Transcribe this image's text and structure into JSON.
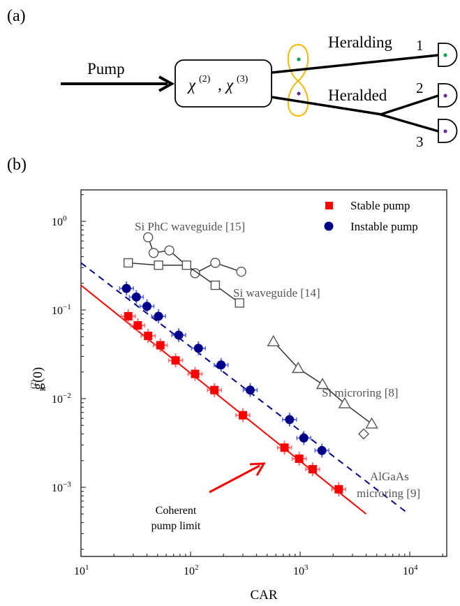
{
  "panel_a": {
    "label": "(a)",
    "pump_label": "Pump",
    "box_label_chi2": "χ",
    "box_sup2": "(2)",
    "box_sep": ", ",
    "box_label_chi3": "χ",
    "box_sup3": "(3)",
    "heralding_label": "Heralding",
    "heralded_label": "Heralded",
    "detector_1": "1",
    "detector_2": "2",
    "detector_3": "3",
    "colors": {
      "loop": "#f5b800",
      "heralding_photon": "#00a651",
      "heralded_photon": "#6a2c9a"
    }
  },
  "panel_b": {
    "label": "(b)"
  },
  "chart_data": {
    "type": "scatter",
    "title": "",
    "xlabel": "CAR",
    "ylabel": "g_h^(2)(0)",
    "xscale": "log",
    "yscale": "log",
    "xlim": [
      10,
      20000
    ],
    "ylim": [
      0.0005,
      2
    ],
    "x_ticks": [
      "10^1",
      "10^2",
      "10^3",
      "10^4"
    ],
    "y_ticks": [
      "10^0",
      "10^-1",
      "10^-2",
      "10^-3"
    ],
    "legend": {
      "position": "upper right",
      "entries": [
        {
          "label": "Stable pump",
          "marker": "square",
          "color": "#ff0000"
        },
        {
          "label": "Instable pump",
          "marker": "circle",
          "color": "#00008b"
        }
      ]
    },
    "series": [
      {
        "name": "Stable pump",
        "marker": "square",
        "color": "#ff0000",
        "x": [
          27,
          33,
          41,
          53,
          73,
          110,
          165,
          300,
          720,
          980,
          1300,
          2250
        ],
        "y": [
          0.085,
          0.067,
          0.051,
          0.04,
          0.027,
          0.019,
          0.0125,
          0.0065,
          0.0028,
          0.0021,
          0.0016,
          0.00095
        ]
      },
      {
        "name": "Instable pump",
        "marker": "circle",
        "color": "#00008b",
        "x": [
          26,
          32,
          40,
          51,
          78,
          118,
          190,
          350,
          800,
          1080,
          1580
        ],
        "y": [
          0.175,
          0.14,
          0.11,
          0.085,
          0.052,
          0.037,
          0.024,
          0.0125,
          0.0058,
          0.0036,
          0.0026
        ]
      },
      {
        "name": "Coherent pump limit",
        "type": "line",
        "style": "solid",
        "color": "#ff0000",
        "x": [
          10,
          4000
        ],
        "y": [
          0.19,
          0.0005
        ]
      },
      {
        "name": "Instable pump fit",
        "type": "line",
        "style": "dashed",
        "color": "#00008b",
        "x": [
          10,
          9800
        ],
        "y": [
          0.34,
          0.0005
        ]
      },
      {
        "name": "Si PhC waveguide [15]",
        "marker": "open-circle",
        "color": "#555555",
        "x": [
          41,
          46,
          64,
          110,
          168,
          290
        ],
        "y": [
          0.66,
          0.44,
          0.47,
          0.26,
          0.34,
          0.27
        ]
      },
      {
        "name": "Si waveguide [14]",
        "marker": "open-square",
        "color": "#555555",
        "x": [
          27,
          51,
          92,
          168,
          280
        ],
        "y": [
          0.34,
          0.32,
          0.32,
          0.19,
          0.12
        ]
      },
      {
        "name": "Si microring [8]",
        "marker": "open-triangle",
        "color": "#555555",
        "x": [
          570,
          960,
          1600,
          2550,
          4500
        ],
        "y": [
          0.044,
          0.022,
          0.0145,
          0.0088,
          0.0052
        ]
      },
      {
        "name": "AlGaAs microring [9]",
        "marker": "open-diamond",
        "color": "#555555",
        "x": [
          3800
        ],
        "y": [
          0.004
        ]
      }
    ],
    "annotations": [
      {
        "text": "Si PhC waveguide [15]",
        "near": [
          40,
          0.9
        ]
      },
      {
        "text": "Si waveguide [14]",
        "near": [
          200,
          0.17
        ]
      },
      {
        "text": "Si microring [8]",
        "near": [
          1500,
          0.018
        ]
      },
      {
        "text": "AlGaAs",
        "near": [
          4000,
          0.0034
        ]
      },
      {
        "text": "microring [9]",
        "near": [
          4000,
          0.0021
        ]
      },
      {
        "text": "Coherent",
        "near": [
          40,
          0.0021
        ]
      },
      {
        "text": "pump limit",
        "near": [
          40,
          0.0013
        ]
      }
    ]
  },
  "text": {
    "phc_label": "Si PhC waveguide [15]",
    "siwg_label": "Si waveguide [14]",
    "microring_label": "Si microring [8]",
    "algaas_label_1": "AlGaAs",
    "algaas_label_2": "microring [9]",
    "coherent_1": "Coherent",
    "coherent_2": "pump limit",
    "legend_stable": "Stable pump",
    "legend_instable": "Instable pump",
    "xlabel": "CAR",
    "ylabel_g": "g",
    "ylabel_sup": "(2)",
    "ylabel_sub": "h",
    "ylabel_rest": "(0)",
    "xtick_base": "10",
    "xtick_exp": [
      "1",
      "2",
      "3",
      "4"
    ],
    "ytick_base": "10",
    "ytick_exp": [
      "0",
      "−1",
      "−2",
      "−3"
    ]
  }
}
